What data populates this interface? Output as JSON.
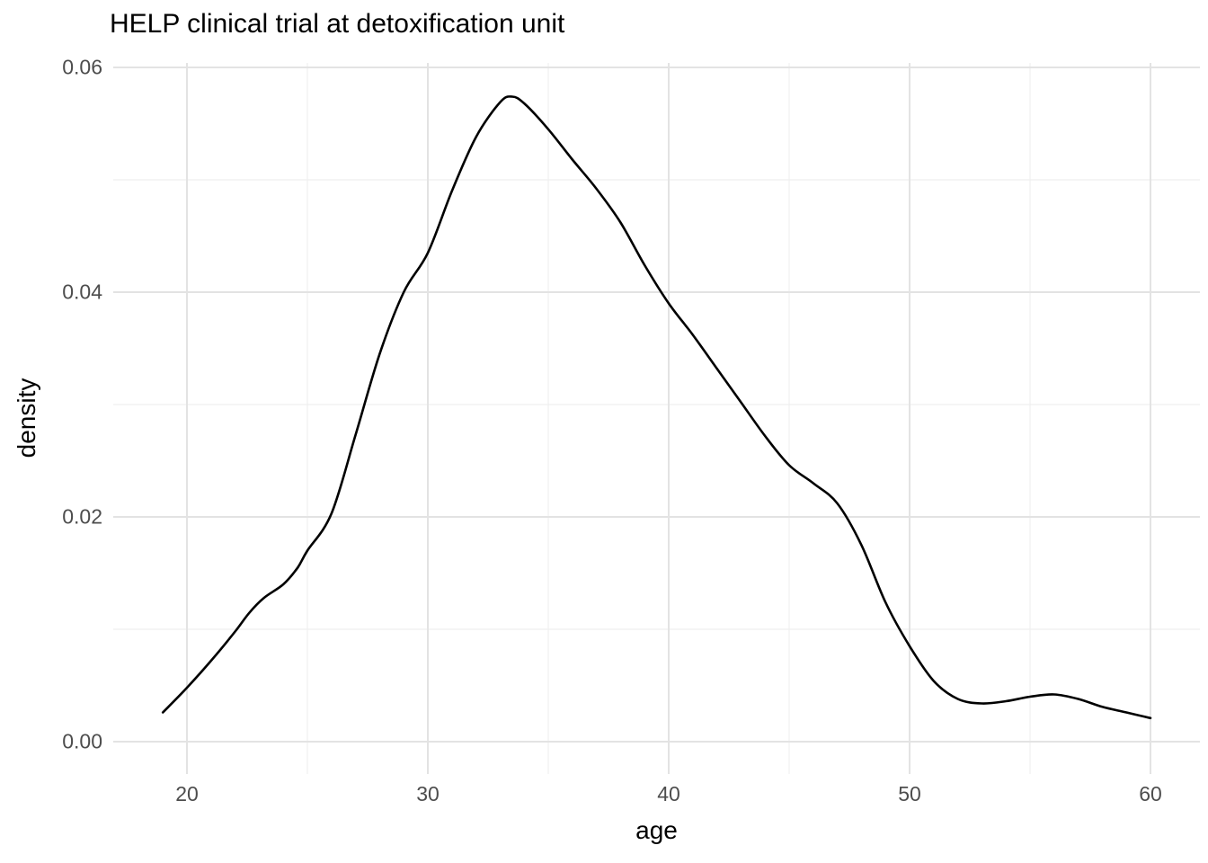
{
  "title": "HELP clinical trial at detoxification unit",
  "chart_data": {
    "type": "line",
    "subtype": "density",
    "title": "HELP clinical trial at detoxification unit",
    "xlabel": "age",
    "ylabel": "density",
    "x_major_ticks": [
      20,
      30,
      40,
      50,
      60
    ],
    "x_minor_ticks": [
      25,
      35,
      45,
      55
    ],
    "x_tick_labels": [
      "20",
      "30",
      "40",
      "50",
      "60"
    ],
    "y_major_ticks": [
      0,
      0.02,
      0.04,
      0.06
    ],
    "y_minor_ticks": [
      0.01,
      0.03,
      0.05
    ],
    "y_tick_labels": [
      "0.00",
      "0.02",
      "0.04",
      "0.06"
    ],
    "xlim": [
      16.95,
      62.05
    ],
    "ylim": [
      -0.0029,
      0.0604
    ],
    "grid": "on",
    "legend": "none",
    "line_color": "#000000",
    "major_grid_color": "#e3e3e3",
    "minor_grid_color": "#efefef",
    "tick_text_color": "#4d4d4d",
    "series": [
      {
        "name": "age density",
        "points": [
          [
            19.0,
            0.0026
          ],
          [
            20.0,
            0.0048
          ],
          [
            21.0,
            0.0072
          ],
          [
            22.0,
            0.0098
          ],
          [
            22.6,
            0.0115
          ],
          [
            23.2,
            0.0128
          ],
          [
            24.0,
            0.014
          ],
          [
            24.6,
            0.0155
          ],
          [
            25.0,
            0.017
          ],
          [
            26.0,
            0.0203
          ],
          [
            27.0,
            0.0273
          ],
          [
            28.0,
            0.0345
          ],
          [
            29.0,
            0.04
          ],
          [
            30.0,
            0.0435
          ],
          [
            31.0,
            0.049
          ],
          [
            32.0,
            0.0538
          ],
          [
            33.0,
            0.0569
          ],
          [
            33.5,
            0.0574
          ],
          [
            34.0,
            0.0568
          ],
          [
            35.0,
            0.0545
          ],
          [
            36.0,
            0.0518
          ],
          [
            37.0,
            0.0492
          ],
          [
            38.0,
            0.0462
          ],
          [
            39.0,
            0.0424
          ],
          [
            40.0,
            0.039
          ],
          [
            41.0,
            0.0362
          ],
          [
            42.0,
            0.0332
          ],
          [
            43.0,
            0.0302
          ],
          [
            44.0,
            0.0272
          ],
          [
            45.0,
            0.0246
          ],
          [
            46.0,
            0.023
          ],
          [
            47.0,
            0.0212
          ],
          [
            48.0,
            0.0175
          ],
          [
            49.0,
            0.0124
          ],
          [
            50.0,
            0.0085
          ],
          [
            51.0,
            0.0054
          ],
          [
            52.0,
            0.0038
          ],
          [
            53.0,
            0.0034
          ],
          [
            54.0,
            0.0036
          ],
          [
            55.0,
            0.004
          ],
          [
            56.0,
            0.0042
          ],
          [
            57.0,
            0.0038
          ],
          [
            58.0,
            0.0031
          ],
          [
            59.0,
            0.0026
          ],
          [
            60.0,
            0.0021
          ]
        ]
      }
    ]
  }
}
